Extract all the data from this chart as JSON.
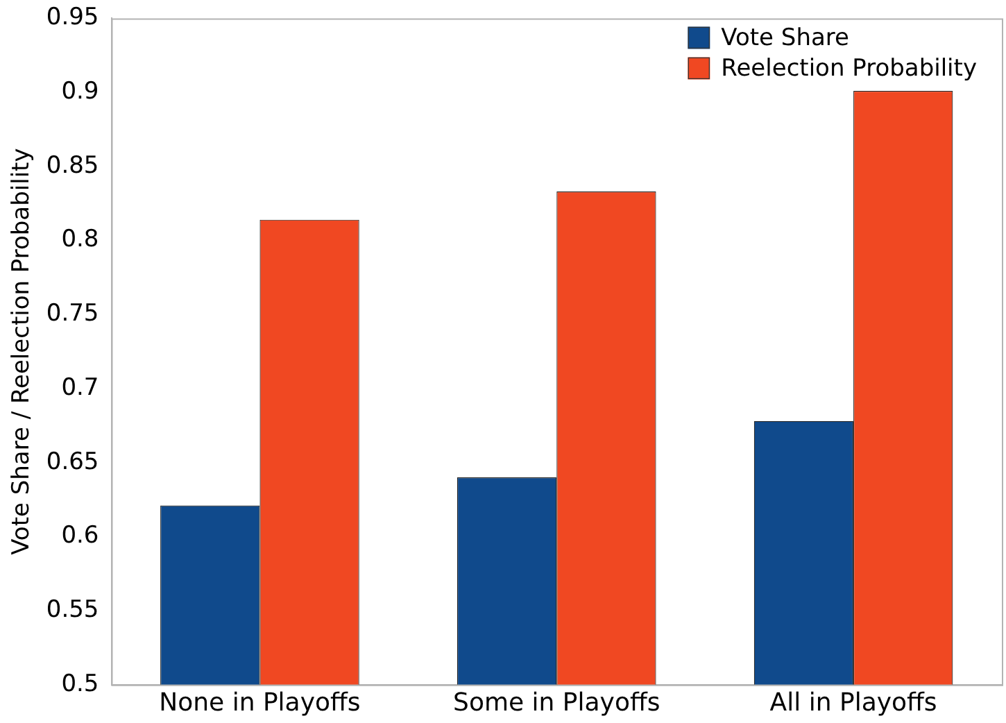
{
  "chart_data": {
    "type": "bar",
    "ylabel": "Vote Share / Reelection Probability",
    "categories": [
      "None in Playoffs",
      "Some in Playoffs",
      "All in Playoffs"
    ],
    "series": [
      {
        "name": "Vote Share",
        "color": "#104a8c",
        "values": [
          0.621,
          0.64,
          0.678
        ]
      },
      {
        "name": "Reelection Probability",
        "color": "#f04822",
        "values": [
          0.814,
          0.833,
          0.901
        ]
      }
    ],
    "ylim": [
      0.5,
      0.95
    ],
    "yticks": [
      0.5,
      0.55,
      0.6,
      0.65,
      0.7,
      0.75,
      0.8,
      0.85,
      0.9,
      0.95
    ],
    "grid": false,
    "legend": "top right"
  }
}
